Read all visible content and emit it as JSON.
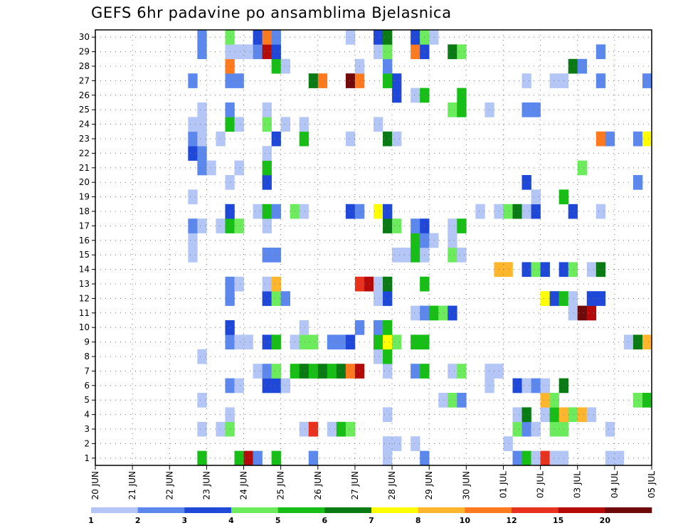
{
  "chart_data": {
    "type": "heatmap",
    "title": "GEFS 6hr padavine po ansamblima Bjelasnica",
    "xlabel": "",
    "ylabel": "",
    "y_ticks": [
      "1",
      "2",
      "3",
      "4",
      "5",
      "6",
      "7",
      "8",
      "9",
      "10",
      "11",
      "12",
      "13",
      "14",
      "15",
      "16",
      "17",
      "18",
      "19",
      "20",
      "21",
      "22",
      "23",
      "24",
      "25",
      "26",
      "27",
      "28",
      "29",
      "30"
    ],
    "x_ticks": [
      "20 JUN",
      "21 JUN",
      "22 JUN",
      "23 JUN",
      "24 JUN",
      "25 JUN",
      "26 JUN",
      "27 JUN",
      "28 JUN",
      "29 JUN",
      "30 JUN",
      "01 JUL",
      "02 JUL",
      "03 JUL",
      "04 JUL",
      "05 JUL"
    ],
    "xlim": [
      0,
      60
    ],
    "ylim": [
      0.5,
      30.5
    ],
    "x_units": "6-hour steps from 20 JUN 00z",
    "grid": true,
    "legend_placement": "bottom",
    "legend": {
      "labels": [
        "1",
        "2",
        "3",
        "4",
        "5",
        "6",
        "7",
        "8",
        "10",
        "12",
        "15",
        "20"
      ],
      "colors": [
        "#b4c6f5",
        "#5c88ee",
        "#1f48d8",
        "#6cec5c",
        "#16be16",
        "#0a7a14",
        "#ffff00",
        "#ffb62c",
        "#ff7a1e",
        "#e8321e",
        "#b40a0a",
        "#700a0a"
      ]
    },
    "cells": [
      [
        1,
        11,
        5
      ],
      [
        1,
        15,
        5
      ],
      [
        1,
        16,
        11
      ],
      [
        1,
        17,
        2
      ],
      [
        1,
        19,
        5
      ],
      [
        1,
        23,
        2
      ],
      [
        1,
        31,
        1
      ],
      [
        1,
        35,
        2
      ],
      [
        1,
        45,
        2
      ],
      [
        1,
        46,
        5
      ],
      [
        1,
        47,
        1
      ],
      [
        1,
        48,
        10
      ],
      [
        1,
        49,
        1
      ],
      [
        1,
        50,
        1
      ],
      [
        1,
        55,
        1
      ],
      [
        1,
        56,
        1
      ],
      [
        2,
        31,
        1
      ],
      [
        2,
        32,
        1
      ],
      [
        2,
        34,
        1
      ],
      [
        2,
        44,
        1
      ],
      [
        3,
        11,
        1
      ],
      [
        3,
        13,
        1
      ],
      [
        3,
        14,
        4
      ],
      [
        3,
        22,
        1
      ],
      [
        3,
        23,
        10
      ],
      [
        3,
        25,
        1
      ],
      [
        3,
        26,
        5
      ],
      [
        3,
        27,
        4
      ],
      [
        3,
        45,
        4
      ],
      [
        3,
        46,
        2
      ],
      [
        3,
        47,
        1
      ],
      [
        3,
        49,
        4
      ],
      [
        3,
        50,
        4
      ],
      [
        3,
        55,
        1
      ],
      [
        4,
        14,
        1
      ],
      [
        4,
        31,
        1
      ],
      [
        4,
        45,
        1
      ],
      [
        4,
        46,
        6
      ],
      [
        4,
        48,
        1
      ],
      [
        4,
        49,
        5
      ],
      [
        4,
        50,
        8
      ],
      [
        4,
        51,
        4
      ],
      [
        4,
        52,
        8
      ],
      [
        4,
        53,
        1
      ],
      [
        5,
        11,
        1
      ],
      [
        5,
        37,
        1
      ],
      [
        5,
        38,
        4
      ],
      [
        5,
        39,
        2
      ],
      [
        5,
        48,
        8
      ],
      [
        5,
        49,
        4
      ],
      [
        5,
        58,
        4
      ],
      [
        5,
        59,
        5
      ],
      [
        6,
        14,
        2
      ],
      [
        6,
        15,
        1
      ],
      [
        6,
        18,
        3
      ],
      [
        6,
        19,
        3
      ],
      [
        6,
        20,
        1
      ],
      [
        6,
        42,
        1
      ],
      [
        6,
        45,
        3
      ],
      [
        6,
        46,
        1
      ],
      [
        6,
        47,
        2
      ],
      [
        6,
        48,
        1
      ],
      [
        6,
        50,
        6
      ],
      [
        7,
        17,
        1
      ],
      [
        7,
        18,
        2
      ],
      [
        7,
        19,
        4
      ],
      [
        7,
        21,
        5
      ],
      [
        7,
        22,
        6
      ],
      [
        7,
        23,
        5
      ],
      [
        7,
        24,
        6
      ],
      [
        7,
        25,
        5
      ],
      [
        7,
        26,
        6
      ],
      [
        7,
        27,
        9
      ],
      [
        7,
        28,
        11
      ],
      [
        7,
        31,
        1
      ],
      [
        7,
        34,
        2
      ],
      [
        7,
        35,
        5
      ],
      [
        7,
        38,
        1
      ],
      [
        7,
        39,
        4
      ],
      [
        7,
        42,
        1
      ],
      [
        7,
        43,
        1
      ],
      [
        8,
        11,
        1
      ],
      [
        8,
        30,
        1
      ],
      [
        8,
        31,
        5
      ],
      [
        9,
        14,
        2
      ],
      [
        9,
        15,
        1
      ],
      [
        9,
        16,
        1
      ],
      [
        9,
        18,
        3
      ],
      [
        9,
        19,
        5
      ],
      [
        9,
        21,
        1
      ],
      [
        9,
        22,
        4
      ],
      [
        9,
        23,
        4
      ],
      [
        9,
        25,
        2
      ],
      [
        9,
        26,
        2
      ],
      [
        9,
        27,
        3
      ],
      [
        9,
        30,
        5
      ],
      [
        9,
        31,
        7
      ],
      [
        9,
        32,
        4
      ],
      [
        9,
        34,
        5
      ],
      [
        9,
        35,
        5
      ],
      [
        9,
        57,
        1
      ],
      [
        9,
        58,
        6
      ],
      [
        9,
        59,
        8
      ],
      [
        10,
        14,
        3
      ],
      [
        10,
        22,
        1
      ],
      [
        10,
        28,
        2
      ],
      [
        10,
        30,
        2
      ],
      [
        10,
        31,
        5
      ],
      [
        11,
        34,
        1
      ],
      [
        11,
        35,
        2
      ],
      [
        11,
        36,
        5
      ],
      [
        11,
        37,
        4
      ],
      [
        11,
        38,
        3
      ],
      [
        11,
        51,
        1
      ],
      [
        11,
        52,
        12
      ],
      [
        11,
        53,
        11
      ],
      [
        12,
        14,
        2
      ],
      [
        12,
        18,
        3
      ],
      [
        12,
        19,
        4
      ],
      [
        12,
        20,
        2
      ],
      [
        12,
        30,
        1
      ],
      [
        12,
        31,
        3
      ],
      [
        12,
        48,
        7
      ],
      [
        12,
        49,
        3
      ],
      [
        12,
        50,
        5
      ],
      [
        12,
        51,
        1
      ],
      [
        12,
        53,
        3
      ],
      [
        12,
        54,
        3
      ],
      [
        13,
        14,
        2
      ],
      [
        13,
        15,
        1
      ],
      [
        13,
        18,
        1
      ],
      [
        13,
        19,
        8
      ],
      [
        13,
        28,
        10
      ],
      [
        13,
        29,
        11
      ],
      [
        13,
        30,
        1
      ],
      [
        13,
        31,
        6
      ],
      [
        13,
        35,
        5
      ],
      [
        14,
        43,
        8
      ],
      [
        14,
        44,
        8
      ],
      [
        14,
        46,
        3
      ],
      [
        14,
        47,
        4
      ],
      [
        14,
        48,
        3
      ],
      [
        14,
        50,
        3
      ],
      [
        14,
        51,
        4
      ],
      [
        14,
        53,
        1
      ],
      [
        14,
        54,
        6
      ],
      [
        15,
        10,
        1
      ],
      [
        15,
        18,
        2
      ],
      [
        15,
        19,
        2
      ],
      [
        15,
        32,
        1
      ],
      [
        15,
        33,
        1
      ],
      [
        15,
        34,
        5
      ],
      [
        15,
        35,
        1
      ],
      [
        15,
        38,
        4
      ],
      [
        15,
        39,
        1
      ],
      [
        16,
        10,
        1
      ],
      [
        16,
        34,
        5
      ],
      [
        16,
        35,
        2
      ],
      [
        16,
        36,
        1
      ],
      [
        16,
        38,
        1
      ],
      [
        17,
        10,
        2
      ],
      [
        17,
        11,
        1
      ],
      [
        17,
        13,
        1
      ],
      [
        17,
        14,
        5
      ],
      [
        17,
        15,
        4
      ],
      [
        17,
        18,
        1
      ],
      [
        17,
        31,
        6
      ],
      [
        17,
        32,
        4
      ],
      [
        17,
        34,
        2
      ],
      [
        17,
        35,
        3
      ],
      [
        17,
        38,
        1
      ],
      [
        17,
        39,
        5
      ],
      [
        18,
        14,
        3
      ],
      [
        18,
        17,
        1
      ],
      [
        18,
        18,
        5
      ],
      [
        18,
        19,
        2
      ],
      [
        18,
        21,
        4
      ],
      [
        18,
        22,
        1
      ],
      [
        18,
        27,
        3
      ],
      [
        18,
        28,
        2
      ],
      [
        18,
        30,
        7
      ],
      [
        18,
        31,
        3
      ],
      [
        18,
        41,
        1
      ],
      [
        18,
        43,
        1
      ],
      [
        18,
        44,
        4
      ],
      [
        18,
        45,
        6
      ],
      [
        18,
        46,
        1
      ],
      [
        18,
        47,
        3
      ],
      [
        18,
        51,
        3
      ],
      [
        18,
        54,
        1
      ],
      [
        19,
        10,
        1
      ],
      [
        19,
        47,
        1
      ],
      [
        19,
        50,
        5
      ],
      [
        20,
        14,
        1
      ],
      [
        20,
        18,
        3
      ],
      [
        20,
        46,
        3
      ],
      [
        20,
        58,
        2
      ],
      [
        21,
        11,
        2
      ],
      [
        21,
        12,
        1
      ],
      [
        21,
        15,
        1
      ],
      [
        21,
        18,
        5
      ],
      [
        21,
        52,
        4
      ],
      [
        22,
        10,
        3
      ],
      [
        22,
        11,
        2
      ],
      [
        22,
        18,
        1
      ],
      [
        23,
        10,
        2
      ],
      [
        23,
        11,
        1
      ],
      [
        23,
        13,
        1
      ],
      [
        23,
        19,
        3
      ],
      [
        23,
        22,
        5
      ],
      [
        23,
        27,
        1
      ],
      [
        23,
        31,
        6
      ],
      [
        23,
        32,
        1
      ],
      [
        23,
        54,
        9
      ],
      [
        23,
        55,
        2
      ],
      [
        23,
        58,
        2
      ],
      [
        23,
        59,
        7
      ],
      [
        24,
        10,
        1
      ],
      [
        24,
        11,
        1
      ],
      [
        24,
        14,
        5
      ],
      [
        24,
        15,
        1
      ],
      [
        24,
        18,
        4
      ],
      [
        24,
        20,
        1
      ],
      [
        24,
        22,
        1
      ],
      [
        24,
        30,
        1
      ],
      [
        25,
        11,
        1
      ],
      [
        25,
        14,
        2
      ],
      [
        25,
        18,
        1
      ],
      [
        25,
        38,
        4
      ],
      [
        25,
        39,
        5
      ],
      [
        25,
        42,
        1
      ],
      [
        25,
        46,
        2
      ],
      [
        25,
        47,
        2
      ],
      [
        26,
        32,
        3
      ],
      [
        26,
        34,
        1
      ],
      [
        26,
        35,
        5
      ],
      [
        26,
        39,
        5
      ],
      [
        27,
        10,
        2
      ],
      [
        27,
        14,
        2
      ],
      [
        27,
        15,
        2
      ],
      [
        27,
        23,
        6
      ],
      [
        27,
        24,
        9
      ],
      [
        27,
        27,
        12
      ],
      [
        27,
        28,
        9
      ],
      [
        27,
        31,
        5
      ],
      [
        27,
        32,
        3
      ],
      [
        27,
        46,
        1
      ],
      [
        27,
        49,
        1
      ],
      [
        27,
        50,
        1
      ],
      [
        27,
        54,
        2
      ],
      [
        27,
        59,
        2
      ],
      [
        28,
        14,
        9
      ],
      [
        28,
        19,
        5
      ],
      [
        28,
        20,
        1
      ],
      [
        28,
        28,
        1
      ],
      [
        28,
        31,
        2
      ],
      [
        28,
        51,
        6
      ],
      [
        28,
        52,
        2
      ],
      [
        29,
        11,
        2
      ],
      [
        29,
        14,
        1
      ],
      [
        29,
        15,
        1
      ],
      [
        29,
        16,
        1
      ],
      [
        29,
        17,
        2
      ],
      [
        29,
        18,
        11
      ],
      [
        29,
        19,
        3
      ],
      [
        29,
        30,
        1
      ],
      [
        29,
        31,
        4
      ],
      [
        29,
        34,
        9
      ],
      [
        29,
        35,
        3
      ],
      [
        29,
        38,
        6
      ],
      [
        29,
        39,
        4
      ],
      [
        29,
        54,
        2
      ],
      [
        30,
        11,
        2
      ],
      [
        30,
        14,
        4
      ],
      [
        30,
        17,
        3
      ],
      [
        30,
        18,
        9
      ],
      [
        30,
        19,
        2
      ],
      [
        30,
        27,
        1
      ],
      [
        30,
        30,
        3
      ],
      [
        30,
        31,
        6
      ],
      [
        30,
        34,
        3
      ],
      [
        30,
        35,
        4
      ],
      [
        30,
        36,
        1
      ]
    ]
  }
}
